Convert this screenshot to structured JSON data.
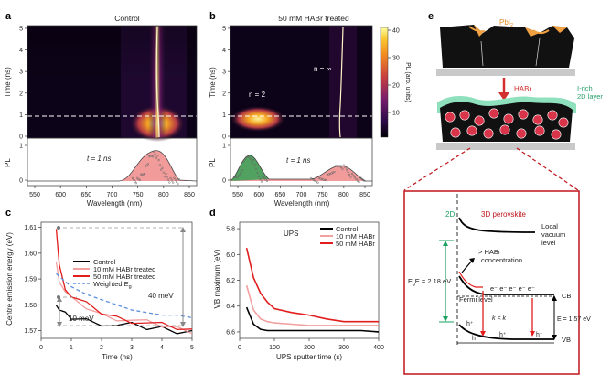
{
  "panels": {
    "a": {
      "letter": "a",
      "title": "Control",
      "y_label": "Time (ns)",
      "pl_label": "PL",
      "t_label": "t = 1 ns",
      "x_label": "Wavelength (nm)",
      "y_ticks": [
        "0",
        "1",
        "2",
        "3",
        "4",
        "5"
      ],
      "pl_ticks": [
        "0",
        "1"
      ],
      "x_ticks": [
        "550",
        "600",
        "650",
        "700",
        "750",
        "800",
        "850"
      ]
    },
    "b": {
      "letter": "b",
      "title": "50 mM HABr treated",
      "y_label": "Time (ns)",
      "pl_label": "PL",
      "t_label": "t = 1 ns",
      "x_label": "Wavelength (nm)",
      "n2": "n = 2",
      "ninf": "n = ∞",
      "y_ticks": [
        "0",
        "1",
        "2",
        "3",
        "4",
        "5"
      ],
      "pl_ticks": [
        "0",
        "1"
      ],
      "x_ticks": [
        "550",
        "600",
        "650",
        "700",
        "750",
        "800",
        "850"
      ],
      "colorbar_label": "PL (arb. units)",
      "colorbar_ticks": [
        "40",
        "30",
        "20",
        "10"
      ]
    },
    "c": {
      "letter": "c",
      "y_label": "Centre emission energy (eV)",
      "x_label": "Time (ns)",
      "y_ticks": [
        "1.57",
        "1.58",
        "1.59",
        "1.60",
        "1.61"
      ],
      "x_ticks": [
        "0",
        "1",
        "2",
        "3",
        "4",
        "5"
      ],
      "ann_40": "40 meV",
      "ann_10": "10 meV",
      "legend": [
        "Control",
        "10 mM HABr treated",
        "50 mM HABr treated",
        "Weighted E"
      ]
    },
    "d": {
      "letter": "d",
      "title": "UPS",
      "y_label": "VB maximum (eV)",
      "x_label": "UPS sputter time (s)",
      "y_ticks": [
        "5.8",
        "6.0",
        "6.2",
        "6.4",
        "6.6"
      ],
      "x_ticks": [
        "0",
        "100",
        "200",
        "300",
        "400"
      ],
      "legend": [
        "Control",
        "10 mM HABr",
        "50 mM HABr"
      ]
    },
    "e": {
      "letter": "e",
      "pbi2": "PbI",
      "habr": "HABr",
      "layer": "I-rich\n2D layer",
      "layer1": "I-rich",
      "layer2": "2D layer",
      "label_2d": "2D",
      "label_3d": "3D perovskite",
      "local_vac1": "Local",
      "local_vac2": "vacuum",
      "local_vac3": "level",
      "conc1": "> HABr",
      "conc2": "concentration",
      "eg_2d": "E  = 2.18 eV",
      "eg_3d": "E  = 1.57 eV",
      "fermi": "Fermi level",
      "cb": "CB",
      "vb": "VB",
      "kr": "k     < k",
      "electrons": "e⁻  e⁻ e⁻ e⁻  e⁻",
      "holes": [
        "h⁺",
        "h⁺",
        "h⁺",
        "h⁺"
      ]
    }
  },
  "chart_data": [
    {
      "type": "line",
      "panel": "c",
      "xlabel": "Time (ns)",
      "ylabel": "Centre emission energy (eV)",
      "xlim": [
        0,
        5
      ],
      "ylim": [
        1.567,
        1.612
      ],
      "series": [
        {
          "name": "Control",
          "color": "#000000",
          "x": [
            0.5,
            0.6,
            0.8,
            1,
            1.5,
            2,
            2.5,
            3,
            3.5,
            4,
            4.5,
            5
          ],
          "values": [
            1.581,
            1.578,
            1.576,
            1.575,
            1.574,
            1.573,
            1.572,
            1.572,
            1.571,
            1.571,
            1.57,
            1.57
          ]
        },
        {
          "name": "10 mM HABr treated",
          "color": "#f2a0a0",
          "x": [
            0.5,
            0.6,
            0.8,
            1,
            1.5,
            2,
            2.5,
            3,
            3.5,
            4,
            4.5,
            5
          ],
          "values": [
            1.596,
            1.59,
            1.585,
            1.582,
            1.579,
            1.576,
            1.575,
            1.574,
            1.573,
            1.572,
            1.571,
            1.57
          ]
        },
        {
          "name": "50 mM HABr treated",
          "color": "#e11d1d",
          "x": [
            0.5,
            0.6,
            0.8,
            1,
            1.5,
            2,
            2.5,
            3,
            3.5,
            4,
            4.5,
            5
          ],
          "values": [
            1.61,
            1.595,
            1.587,
            1.583,
            1.58,
            1.577,
            1.575,
            1.574,
            1.573,
            1.572,
            1.571,
            1.57
          ]
        },
        {
          "name": "Weighted E",
          "color": "#5b8fdc",
          "x": [
            0.5,
            1,
            1.5,
            2,
            2.5,
            3,
            3.5,
            4,
            4.5,
            5
          ],
          "values": [
            1.592,
            1.587,
            1.584,
            1.582,
            1.58,
            1.578,
            1.577,
            1.576,
            1.576,
            1.575
          ]
        }
      ]
    },
    {
      "type": "line",
      "panel": "d",
      "xlabel": "UPS sputter time (s)",
      "ylabel": "VB maximum (eV)",
      "xlim": [
        0,
        400
      ],
      "ylim": [
        5.75,
        6.65
      ],
      "series": [
        {
          "name": "Control",
          "color": "#000000",
          "x": [
            20,
            40,
            60,
            80,
            100,
            150,
            200,
            250,
            300,
            350,
            400
          ],
          "values": [
            6.41,
            6.54,
            6.58,
            6.59,
            6.59,
            6.59,
            6.59,
            6.59,
            6.59,
            6.59,
            6.6
          ]
        },
        {
          "name": "10 mM HABr",
          "color": "#f2a0a0",
          "x": [
            20,
            40,
            60,
            80,
            100,
            150,
            200,
            250,
            300,
            350,
            400
          ],
          "values": [
            6.24,
            6.43,
            6.5,
            6.52,
            6.53,
            6.54,
            6.55,
            6.55,
            6.55,
            6.55,
            6.55
          ]
        },
        {
          "name": "50 mM HABr",
          "color": "#e11d1d",
          "x": [
            20,
            40,
            60,
            80,
            100,
            150,
            200,
            250,
            300,
            350,
            400
          ],
          "values": [
            5.95,
            6.18,
            6.3,
            6.37,
            6.42,
            6.45,
            6.47,
            6.5,
            6.52,
            6.52,
            6.52
          ]
        }
      ]
    }
  ]
}
